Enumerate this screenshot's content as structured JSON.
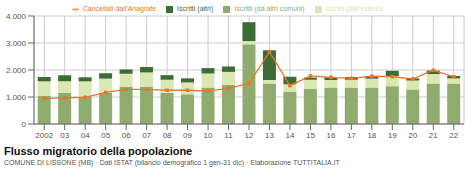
{
  "chart_data": {
    "type": "bar",
    "title": "Flusso migratorio della popolazione",
    "subtitle": "COMUNE DI LISSONE (MB) · Dati ISTAT (bilancio demografico 1 gen-31 dic) · Elaborazione TUTTITALIA.IT",
    "categories": [
      "2002",
      "03",
      "04",
      "05",
      "06",
      "07",
      "08",
      "09",
      "10",
      "11",
      "12",
      "13",
      "14",
      "15",
      "16",
      "17",
      "18",
      "19",
      "20",
      "21",
      "22"
    ],
    "series": [
      {
        "name": "Iscritti (da altri comuni)",
        "type": "bar",
        "color": "#8fac6e",
        "values": [
          1050,
          1150,
          1000,
          1150,
          1380,
          1380,
          1150,
          1100,
          1350,
          1450,
          2950,
          1500,
          1200,
          1300,
          1350,
          1350,
          1350,
          1400,
          1280,
          1500,
          1500
        ]
      },
      {
        "name": "Iscritti (dall'estero)",
        "type": "bar",
        "color": "#d9e8b0",
        "values": [
          530,
          430,
          580,
          530,
          480,
          530,
          490,
          440,
          520,
          480,
          120,
          130,
          270,
          340,
          280,
          290,
          330,
          380,
          330,
          350,
          190
        ]
      },
      {
        "name": "Iscritti (altri)",
        "type": "bar",
        "color": "#3d6b35",
        "values": [
          160,
          230,
          150,
          200,
          160,
          200,
          170,
          150,
          200,
          200,
          700,
          1100,
          280,
          80,
          100,
          100,
          80,
          190,
          80,
          130,
          90
        ]
      },
      {
        "name": "Cancellati dall'Anagrafe",
        "type": "line",
        "color": "#e8762d",
        "marker": "square",
        "values": [
          950,
          970,
          990,
          1170,
          1280,
          1280,
          1250,
          1250,
          1220,
          1320,
          1500,
          2670,
          1420,
          1780,
          1730,
          1690,
          1770,
          1750,
          1670,
          1990,
          1750
        ]
      }
    ],
    "stacked": true,
    "ylim": [
      0,
      4000
    ],
    "yticks": [
      0,
      {
        "value": 1000,
        "label": "1.000"
      },
      {
        "value": 2000,
        "label": "2.000"
      },
      {
        "value": 3000,
        "label": "3.000"
      },
      {
        "value": 4000,
        "label": "4.000"
      }
    ],
    "grid": true,
    "legend": "top"
  }
}
